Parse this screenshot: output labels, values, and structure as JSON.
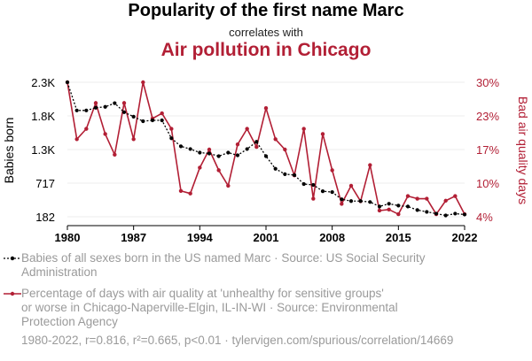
{
  "header": {
    "title": "Popularity of the first name Marc",
    "subtitle": "correlates with",
    "title2": "Air pollution in Chicago"
  },
  "colors": {
    "series1": "#000000",
    "series2": "#b21f35",
    "legend_text": "#9a9a9a",
    "grid": "#eeeeee"
  },
  "chart_data": {
    "type": "line",
    "x": [
      1980,
      1981,
      1982,
      1983,
      1984,
      1985,
      1986,
      1987,
      1988,
      1989,
      1990,
      1991,
      1992,
      1993,
      1994,
      1995,
      1996,
      1997,
      1998,
      1999,
      2000,
      2001,
      2002,
      2003,
      2004,
      2005,
      2006,
      2007,
      2008,
      2009,
      2010,
      2011,
      2012,
      2013,
      2014,
      2015,
      2016,
      2017,
      2018,
      2019,
      2020,
      2021,
      2022
    ],
    "xticks": [
      "1980",
      "1987",
      "1994",
      "2001",
      "2008",
      "2015",
      "2022"
    ],
    "xlim": [
      1980,
      2022
    ],
    "left_axis": {
      "label": "Babies born",
      "ticks": [
        "182",
        "717",
        "1.3K",
        "1.8K",
        "2.3K"
      ],
      "tick_values": [
        182,
        717,
        1252,
        1787,
        2322
      ],
      "ylim": [
        182,
        2322
      ]
    },
    "right_axis": {
      "label": "Bad air quality days",
      "ticks": [
        "4%",
        "10%",
        "17%",
        "23%",
        "30%"
      ],
      "tick_values": [
        4,
        10.5,
        17,
        23.5,
        30
      ],
      "ylim": [
        4,
        30
      ]
    },
    "series": [
      {
        "name": "Babies of all sexes born in the US named Marc",
        "axis": "left",
        "style": "dotted",
        "values": [
          2322,
          1874,
          1874,
          1917,
          1931,
          1990,
          1846,
          1775,
          1703,
          1717,
          1717,
          1432,
          1303,
          1260,
          1203,
          1189,
          1146,
          1203,
          1160,
          1260,
          1375,
          1146,
          946,
          860,
          846,
          703,
          689,
          589,
          575,
          460,
          432,
          432,
          417,
          346,
          389,
          360,
          346,
          289,
          260,
          232,
          203,
          232,
          218
        ]
      },
      {
        "name": "Percentage of days with air quality at 'unhealthy for sensitive groups' or worse in Chicago-Naperville-Elgin, IL-IN-WI",
        "axis": "right",
        "style": "solid",
        "values": [
          30,
          19,
          21,
          26,
          20,
          16,
          26,
          19,
          30,
          23,
          24,
          21,
          9,
          8.5,
          13.5,
          17,
          13,
          10,
          18,
          21,
          17.5,
          25,
          19,
          17,
          12,
          21,
          7.5,
          20,
          13,
          6.5,
          10,
          7,
          14,
          5.2,
          5.4,
          4.5,
          8,
          7.5,
          7.5,
          4.5,
          7.1,
          8,
          4.5
        ]
      }
    ]
  },
  "legend": {
    "item1": {
      "line1": "Babies of all sexes born in the US named Marc · Source: US Social Security",
      "line2": "Administration"
    },
    "item2": {
      "line1": "Percentage of days with air quality at 'unhealthy for sensitive groups'",
      "line2": "or worse in Chicago-Naperville-Elgin, IL-IN-WI · Source: Environmental",
      "line3": "Protection Agency"
    }
  },
  "footer": {
    "text": "1980-2022, r=0.816, r²=0.665, p<0.01 · tylervigen.com/spurious/correlation/14669"
  }
}
